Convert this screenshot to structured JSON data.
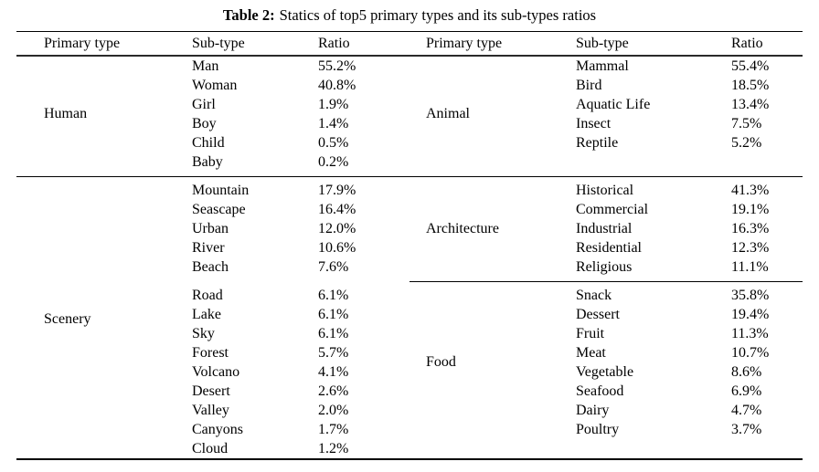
{
  "caption": {
    "label": "Table 2:",
    "text": "Statics of top5 primary types and its sub-types ratios"
  },
  "columns": {
    "primary": "Primary type",
    "sub": "Sub-type",
    "ratio": "Ratio"
  },
  "sections": {
    "human": {
      "name": "Human",
      "rows": [
        {
          "sub": "Man",
          "ratio": "55.2%"
        },
        {
          "sub": "Woman",
          "ratio": "40.8%"
        },
        {
          "sub": "Girl",
          "ratio": "1.9%"
        },
        {
          "sub": "Boy",
          "ratio": "1.4%"
        },
        {
          "sub": "Child",
          "ratio": "0.5%"
        },
        {
          "sub": "Baby",
          "ratio": "0.2%"
        }
      ]
    },
    "animal": {
      "name": "Animal",
      "rows": [
        {
          "sub": "Mammal",
          "ratio": "55.4%"
        },
        {
          "sub": "Bird",
          "ratio": "18.5%"
        },
        {
          "sub": "Aquatic Life",
          "ratio": "13.4%"
        },
        {
          "sub": "Insect",
          "ratio": "7.5%"
        },
        {
          "sub": "Reptile",
          "ratio": "5.2%"
        }
      ]
    },
    "scenery": {
      "name": "Scenery",
      "rows": [
        {
          "sub": "Mountain",
          "ratio": "17.9%"
        },
        {
          "sub": "Seascape",
          "ratio": "16.4%"
        },
        {
          "sub": "Urban",
          "ratio": "12.0%"
        },
        {
          "sub": "River",
          "ratio": "10.6%"
        },
        {
          "sub": "Beach",
          "ratio": "7.6%"
        },
        {
          "sub": "Road",
          "ratio": "6.1%"
        },
        {
          "sub": "Lake",
          "ratio": "6.1%"
        },
        {
          "sub": "Sky",
          "ratio": "6.1%"
        },
        {
          "sub": "Forest",
          "ratio": "5.7%"
        },
        {
          "sub": "Volcano",
          "ratio": "4.1%"
        },
        {
          "sub": "Desert",
          "ratio": "2.6%"
        },
        {
          "sub": "Valley",
          "ratio": "2.0%"
        },
        {
          "sub": "Canyons",
          "ratio": "1.7%"
        },
        {
          "sub": "Cloud",
          "ratio": "1.2%"
        }
      ]
    },
    "architecture": {
      "name": "Architecture",
      "rows": [
        {
          "sub": "Historical",
          "ratio": "41.3%"
        },
        {
          "sub": "Commercial",
          "ratio": "19.1%"
        },
        {
          "sub": "Industrial",
          "ratio": "16.3%"
        },
        {
          "sub": "Residential",
          "ratio": "12.3%"
        },
        {
          "sub": "Religious",
          "ratio": "11.1%"
        }
      ]
    },
    "food": {
      "name": "Food",
      "rows": [
        {
          "sub": "Snack",
          "ratio": "35.8%"
        },
        {
          "sub": "Dessert",
          "ratio": "19.4%"
        },
        {
          "sub": "Fruit",
          "ratio": "11.3%"
        },
        {
          "sub": "Meat",
          "ratio": "10.7%"
        },
        {
          "sub": "Vegetable",
          "ratio": "8.6%"
        },
        {
          "sub": "Seafood",
          "ratio": "6.9%"
        },
        {
          "sub": "Dairy",
          "ratio": "4.7%"
        },
        {
          "sub": "Poultry",
          "ratio": "3.7%"
        }
      ]
    }
  }
}
